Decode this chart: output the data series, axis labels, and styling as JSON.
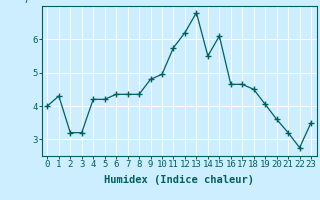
{
  "x": [
    0,
    1,
    2,
    3,
    4,
    5,
    6,
    7,
    8,
    9,
    10,
    11,
    12,
    13,
    14,
    15,
    16,
    17,
    18,
    19,
    20,
    21,
    22,
    23
  ],
  "y": [
    4.0,
    4.3,
    3.2,
    3.2,
    4.2,
    4.2,
    4.35,
    4.35,
    4.35,
    4.8,
    4.95,
    5.75,
    6.2,
    6.8,
    5.5,
    6.1,
    4.65,
    4.65,
    4.5,
    4.05,
    3.6,
    3.2,
    2.75,
    3.5
  ],
  "line_color": "#006060",
  "marker": "+",
  "marker_size": 4,
  "bg_color": "#cceeff",
  "grid_color": "#ffffff",
  "tick_color": "#006060",
  "xlabel": "Humidex (Indice chaleur)",
  "xlim": [
    -0.5,
    23.5
  ],
  "ylim": [
    2.5,
    7.0
  ],
  "yticks": [
    3,
    4,
    5,
    6
  ],
  "xticks": [
    0,
    1,
    2,
    3,
    4,
    5,
    6,
    7,
    8,
    9,
    10,
    11,
    12,
    13,
    14,
    15,
    16,
    17,
    18,
    19,
    20,
    21,
    22,
    23
  ],
  "xlabel_fontsize": 7.5,
  "tick_fontsize": 6.5
}
